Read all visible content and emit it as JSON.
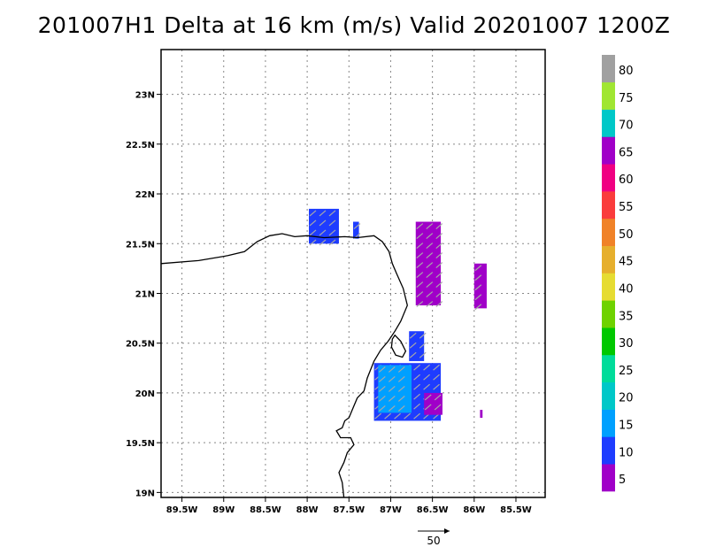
{
  "title": "201007H1 Delta at 16 km (m/s) Valid 20201007  1200Z",
  "map": {
    "lon_range": [
      -89.75,
      -85.15
    ],
    "lat_range": [
      18.95,
      23.45
    ],
    "lat_ticks": [
      {
        "value": 19.0,
        "label": "19N"
      },
      {
        "value": 19.5,
        "label": "19.5N"
      },
      {
        "value": 20.0,
        "label": "20N"
      },
      {
        "value": 20.5,
        "label": "20.5N"
      },
      {
        "value": 21.0,
        "label": "21N"
      },
      {
        "value": 21.5,
        "label": "21.5N"
      },
      {
        "value": 22.0,
        "label": "22N"
      },
      {
        "value": 22.5,
        "label": "22.5N"
      },
      {
        "value": 23.0,
        "label": "23N"
      }
    ],
    "lon_ticks": [
      {
        "value": -89.5,
        "label": "89.5W"
      },
      {
        "value": -89.0,
        "label": "89W"
      },
      {
        "value": -88.5,
        "label": "88.5W"
      },
      {
        "value": -88.0,
        "label": "88W"
      },
      {
        "value": -87.5,
        "label": "87.5W"
      },
      {
        "value": -87.0,
        "label": "87W"
      },
      {
        "value": -86.5,
        "label": "86.5W"
      },
      {
        "value": -86.0,
        "label": "86W"
      },
      {
        "value": -85.5,
        "label": "85.5W"
      }
    ],
    "grid": true,
    "coastline": [
      [
        -89.75,
        21.3
      ],
      [
        -89.3,
        21.33
      ],
      [
        -88.95,
        21.38
      ],
      [
        -88.75,
        21.42
      ],
      [
        -88.6,
        21.52
      ],
      [
        -88.45,
        21.58
      ],
      [
        -88.3,
        21.6
      ],
      [
        -88.15,
        21.57
      ],
      [
        -88.0,
        21.58
      ],
      [
        -87.8,
        21.56
      ],
      [
        -87.55,
        21.57
      ],
      [
        -87.4,
        21.56
      ],
      [
        -87.2,
        21.58
      ],
      [
        -87.1,
        21.52
      ],
      [
        -87.02,
        21.42
      ],
      [
        -86.98,
        21.3
      ],
      [
        -86.93,
        21.2
      ],
      [
        -86.85,
        21.05
      ],
      [
        -86.8,
        20.88
      ],
      [
        -86.88,
        20.72
      ],
      [
        -86.95,
        20.62
      ],
      [
        -87.03,
        20.52
      ],
      [
        -87.12,
        20.43
      ],
      [
        -87.2,
        20.32
      ],
      [
        -87.28,
        20.15
      ],
      [
        -87.32,
        20.02
      ],
      [
        -87.4,
        19.95
      ],
      [
        -87.45,
        19.85
      ],
      [
        -87.5,
        19.75
      ],
      [
        -87.55,
        19.72
      ],
      [
        -87.58,
        19.65
      ],
      [
        -87.65,
        19.62
      ],
      [
        -87.6,
        19.55
      ],
      [
        -87.48,
        19.55
      ],
      [
        -87.44,
        19.48
      ],
      [
        -87.52,
        19.4
      ],
      [
        -87.56,
        19.3
      ],
      [
        -87.62,
        19.2
      ],
      [
        -87.58,
        19.1
      ],
      [
        -87.56,
        18.95
      ]
    ],
    "cozumel": [
      [
        -86.95,
        20.58
      ],
      [
        -86.88,
        20.52
      ],
      [
        -86.82,
        20.42
      ],
      [
        -86.86,
        20.36
      ],
      [
        -86.94,
        20.38
      ],
      [
        -86.99,
        20.46
      ],
      [
        -86.98,
        20.54
      ],
      [
        -86.95,
        20.58
      ]
    ],
    "wind_regions": [
      {
        "lon": [
          -87.98,
          -87.62
        ],
        "lat": [
          21.5,
          21.85
        ],
        "level": 10
      },
      {
        "lon": [
          -87.45,
          -87.38
        ],
        "lat": [
          21.55,
          21.72
        ],
        "level": 10
      },
      {
        "lon": [
          -86.7,
          -86.4
        ],
        "lat": [
          20.88,
          21.72
        ],
        "level": 5
      },
      {
        "lon": [
          -86.0,
          -85.85
        ],
        "lat": [
          20.85,
          21.3
        ],
        "level": 5
      },
      {
        "lon": [
          -86.78,
          -86.6
        ],
        "lat": [
          20.32,
          20.62
        ],
        "level": 10
      },
      {
        "lon": [
          -87.2,
          -86.4
        ],
        "lat": [
          19.72,
          20.3
        ],
        "level": 10
      },
      {
        "lon": [
          -87.15,
          -86.75
        ],
        "lat": [
          19.8,
          20.28
        ],
        "level": 15
      },
      {
        "lon": [
          -86.6,
          -86.38
        ],
        "lat": [
          19.78,
          20.0
        ],
        "level": 5
      },
      {
        "lon": [
          -85.93,
          -85.9
        ],
        "lat": [
          19.75,
          19.83
        ],
        "level": 5
      }
    ]
  },
  "colorbar": {
    "labels": [
      "5",
      "10",
      "15",
      "20",
      "25",
      "30",
      "35",
      "40",
      "45",
      "50",
      "55",
      "60",
      "65",
      "70",
      "75",
      "80"
    ],
    "colors": [
      "#a000c8",
      "#1e3cff",
      "#00a0ff",
      "#00c8c8",
      "#00dc9a",
      "#00c800",
      "#6ed200",
      "#e6dc32",
      "#e6af2d",
      "#f08228",
      "#fa3c3c",
      "#f00082",
      "#a000c8",
      "#00c8c8",
      "#a0e632",
      "#a0a0a0"
    ]
  },
  "arrow_legend": {
    "value": "50"
  }
}
